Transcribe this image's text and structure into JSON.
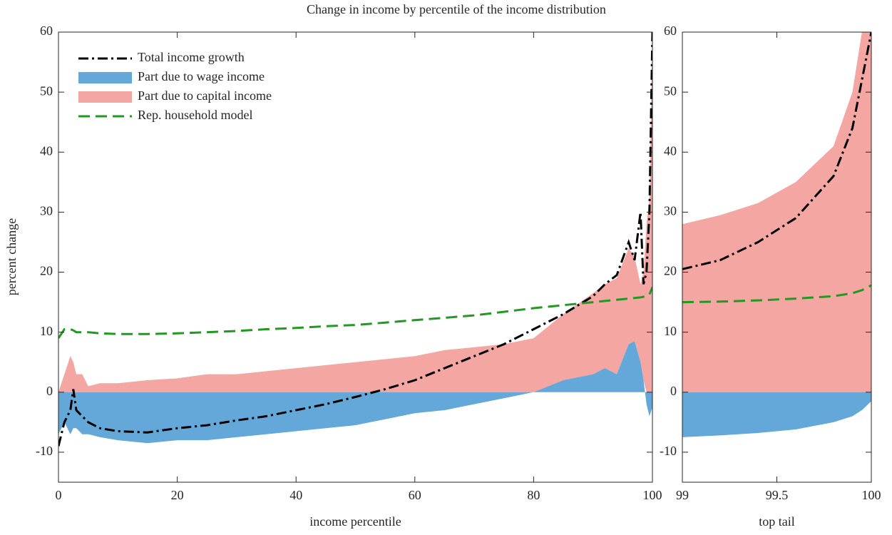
{
  "chart_data": [
    {
      "type": "line",
      "title": "Change in income by percentile of the income distribution",
      "x_label": "income percentile",
      "y_label": "percent change",
      "xlim": [
        0,
        100
      ],
      "xticks": [
        0,
        20,
        40,
        60,
        80,
        100
      ],
      "ylim": [
        -15,
        60
      ],
      "yticks": [
        -10,
        0,
        10,
        20,
        30,
        40,
        50,
        60
      ],
      "legend": "upper left",
      "x": [
        0,
        1,
        2,
        2.5,
        3,
        4,
        5,
        7,
        10,
        15,
        20,
        25,
        30,
        35,
        40,
        45,
        50,
        55,
        60,
        65,
        70,
        75,
        80,
        85,
        90,
        92,
        94,
        96,
        97,
        98,
        98.5,
        99,
        99.5,
        100
      ],
      "series": [
        {
          "name": "Total income growth",
          "style": "dash-dot",
          "color": "#000000",
          "values": [
            -9,
            -5,
            -3,
            0.5,
            -3,
            -4,
            -5,
            -6,
            -6.5,
            -6.7,
            -6,
            -5.5,
            -4.7,
            -4,
            -3,
            -2,
            -0.8,
            0.5,
            2,
            4,
            6,
            8,
            10.5,
            13,
            16,
            18,
            19.5,
            25,
            22,
            30,
            18,
            20,
            30,
            60
          ]
        },
        {
          "name": "Part due to wage income",
          "style": "area",
          "color": "#63a8d8",
          "values": [
            -7,
            -5,
            -7,
            -6,
            -6,
            -7,
            -7,
            -7.5,
            -8,
            -8.5,
            -8,
            -8,
            -7.5,
            -7,
            -6.5,
            -6,
            -5.5,
            -4.5,
            -3.5,
            -3,
            -2,
            -1,
            0,
            2,
            3,
            4,
            3,
            8,
            8.5,
            5,
            2,
            -2,
            -4,
            -2.5
          ]
        },
        {
          "name": "Part due to capital income",
          "style": "area",
          "color": "#f4a6a2",
          "values": [
            0,
            3,
            6,
            5,
            3,
            3,
            1,
            1.5,
            1.5,
            2,
            2.3,
            3,
            3,
            3.5,
            4,
            4.5,
            5,
            5.5,
            6,
            7,
            7.5,
            8,
            9,
            11,
            13.5,
            14,
            16,
            16,
            14,
            13,
            18,
            28,
            32,
            60
          ]
        },
        {
          "name": "Rep. household model",
          "style": "dashed",
          "color": "#229922",
          "values": [
            9,
            10.5,
            10.5,
            10.3,
            10,
            10,
            10,
            9.8,
            9.7,
            9.7,
            9.8,
            10,
            10.2,
            10.5,
            10.7,
            11,
            11.2,
            11.6,
            12,
            12.4,
            12.8,
            13.4,
            14,
            14.5,
            15,
            15.2,
            15.4,
            15.6,
            15.7,
            15.8,
            15.9,
            16,
            16.3,
            17.5
          ]
        }
      ]
    },
    {
      "type": "line",
      "x_label": "top tail",
      "xlim": [
        99,
        100
      ],
      "xticks": [
        99,
        99.5,
        100
      ],
      "ylim": [
        -15,
        60
      ],
      "yticks": [
        -10,
        0,
        10,
        20,
        30,
        40,
        50,
        60
      ],
      "x": [
        99,
        99.2,
        99.4,
        99.6,
        99.8,
        99.9,
        99.95,
        100
      ],
      "series": [
        {
          "style": "area",
          "color": "#63a8d8",
          "values": [
            -7.5,
            -7.2,
            -6.8,
            -6.2,
            -5,
            -4,
            -3,
            -1.5
          ]
        },
        {
          "style": "area",
          "color": "#f4a6a2",
          "values": [
            28,
            29.5,
            31.5,
            35,
            41,
            50,
            60,
            60
          ]
        },
        {
          "style": "dash-dot",
          "color": "#000000",
          "values": [
            20.5,
            22,
            25,
            29,
            36,
            44,
            52,
            60
          ]
        },
        {
          "style": "dashed",
          "color": "#229922",
          "values": [
            15,
            15.1,
            15.3,
            15.6,
            16,
            16.5,
            17,
            17.8
          ]
        }
      ]
    }
  ]
}
